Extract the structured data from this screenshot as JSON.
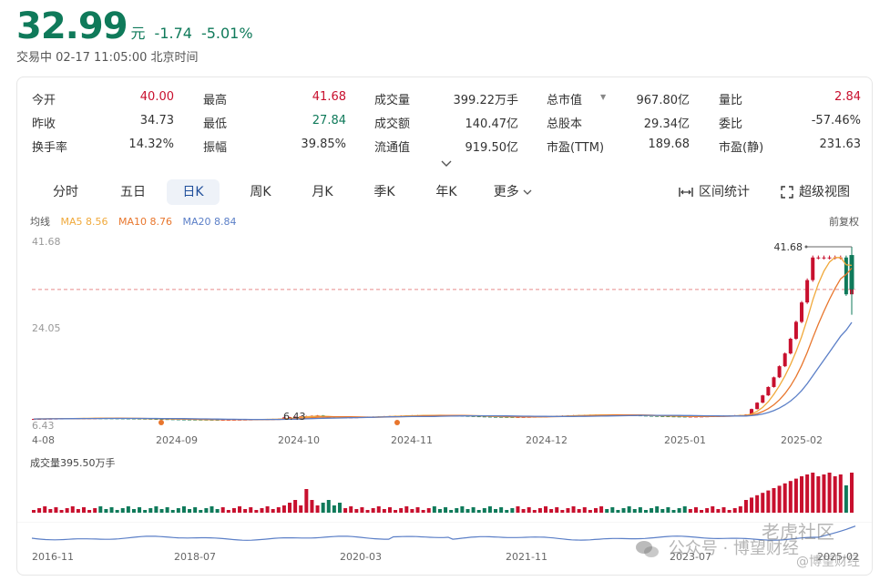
{
  "quote": {
    "price": "32.99",
    "unit": "元",
    "change": "-1.74",
    "change_pct": "-5.01%",
    "status": "交易中 02-17 11:05:00 北京时间"
  },
  "stats": [
    [
      {
        "label": "今开",
        "value": "40.00",
        "tone": "red"
      },
      {
        "label": "最高",
        "value": "41.68",
        "tone": "red"
      },
      {
        "label": "成交量",
        "value": "399.22万手",
        "tone": ""
      },
      {
        "label": "总市值",
        "value": "967.80亿",
        "tone": "",
        "dropdown": true
      },
      {
        "label": "量比",
        "value": "2.84",
        "tone": "red"
      }
    ],
    [
      {
        "label": "昨收",
        "value": "34.73",
        "tone": ""
      },
      {
        "label": "最低",
        "value": "27.84",
        "tone": "green"
      },
      {
        "label": "成交额",
        "value": "140.47亿",
        "tone": ""
      },
      {
        "label": "总股本",
        "value": "29.34亿",
        "tone": ""
      },
      {
        "label": "委比",
        "value": "-57.46%",
        "tone": ""
      }
    ],
    [
      {
        "label": "换手率",
        "value": "14.32%",
        "tone": ""
      },
      {
        "label": "振幅",
        "value": "39.85%",
        "tone": ""
      },
      {
        "label": "流通值",
        "value": "919.50亿",
        "tone": ""
      },
      {
        "label": "市盈(TTM)",
        "value": "189.68",
        "tone": ""
      },
      {
        "label": "市盈(静)",
        "value": "231.63",
        "tone": ""
      }
    ]
  ],
  "tabs": [
    "分时",
    "五日",
    "日K",
    "周K",
    "月K",
    "季K",
    "年K",
    "更多"
  ],
  "active_tab": "日K",
  "tools": {
    "interval": "区间统计",
    "super": "超级视图"
  },
  "ma": {
    "label": "均线",
    "ma5": "MA5 8.56",
    "ma10": "MA10 8.76",
    "ma20": "MA20 8.84"
  },
  "adjust": "前复权",
  "chart_data": {
    "type": "candlestick",
    "y_labels": [
      "41.68",
      "24.05",
      "6.43"
    ],
    "x_labels": [
      "4-08",
      "2024-09",
      "2024-10",
      "2024-11",
      "2024-12",
      "2025-01",
      "2025-02"
    ],
    "max_marker": "41.68",
    "min_marker": "6.43",
    "volume_label": "成交量395.50万手",
    "nav_labels": [
      "2016-11",
      "2018-07",
      "2020-03",
      "2021-11",
      "2023-07",
      "2025-02"
    ],
    "colors": {
      "up": "#c8102e",
      "down": "#0f7a5a",
      "ma5": "#f0a93b",
      "ma10": "#e8762d",
      "ma20": "#5b7fc7"
    }
  },
  "watermark": {
    "line1": "公众号 · 博望财经",
    "line2": "老虎社区",
    "line3": "@博望财经"
  }
}
